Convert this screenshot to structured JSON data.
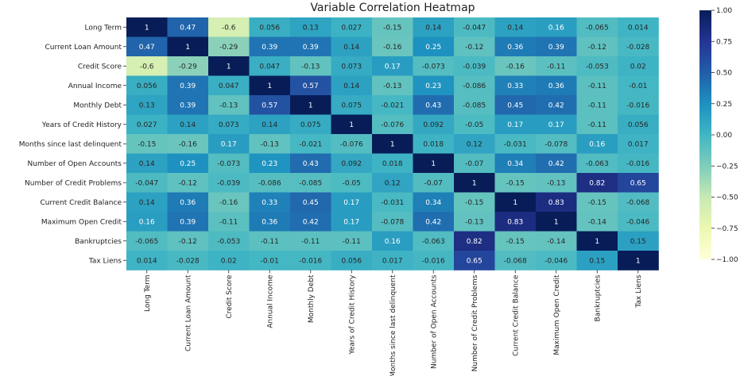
{
  "chart_data": {
    "type": "heatmap",
    "title": "Variable Correlation Heatmap",
    "colormap": "YlGnBu",
    "vmin": -1.0,
    "vmax": 1.0,
    "colorbar_ticks": [
      1.0,
      0.75,
      0.5,
      0.25,
      0.0,
      -0.25,
      -0.5,
      -0.75,
      -1.0
    ],
    "colorbar_tick_labels": [
      "1.00",
      "0.75",
      "0.50",
      "0.25",
      "0.00",
      "−0.25",
      "−0.50",
      "−0.75",
      "−1.00"
    ],
    "rows": [
      "Long Term",
      "Current Loan Amount",
      "Credit Score",
      "Annual Income",
      "Monthly Debt",
      "Years of Credit History",
      "Months since last delinquent",
      "Number of Open Accounts",
      "Number of Credit Problems",
      "Current Credit Balance",
      "Maximum Open Credit",
      "Bankruptcies",
      "Tax Liens"
    ],
    "columns": [
      "Long Term",
      "Current Loan Amount",
      "Credit Score",
      "Annual Income",
      "Monthly Debt",
      "Years of Credit History",
      "Months since last delinquent",
      "Number of Open Accounts",
      "Number of Credit Problems",
      "Current Credit Balance",
      "Maximum Open Credit",
      "Bankruptcies",
      "Tax Liens"
    ],
    "values": [
      [
        1,
        0.47,
        -0.6,
        0.056,
        0.13,
        0.027,
        -0.15,
        0.14,
        -0.047,
        0.14,
        0.16,
        -0.065,
        0.014
      ],
      [
        0.47,
        1,
        -0.29,
        0.39,
        0.39,
        0.14,
        -0.16,
        0.25,
        -0.12,
        0.36,
        0.39,
        -0.12,
        -0.028
      ],
      [
        -0.6,
        -0.29,
        1,
        0.047,
        -0.13,
        0.073,
        0.17,
        -0.073,
        -0.039,
        -0.16,
        -0.11,
        -0.053,
        0.02
      ],
      [
        0.056,
        0.39,
        0.047,
        1,
        0.57,
        0.14,
        -0.13,
        0.23,
        -0.086,
        0.33,
        0.36,
        -0.11,
        -0.01
      ],
      [
        0.13,
        0.39,
        -0.13,
        0.57,
        1,
        0.075,
        -0.021,
        0.43,
        -0.085,
        0.45,
        0.42,
        -0.11,
        -0.016
      ],
      [
        0.027,
        0.14,
        0.073,
        0.14,
        0.075,
        1,
        -0.076,
        0.092,
        -0.05,
        0.17,
        0.17,
        -0.11,
        0.056
      ],
      [
        -0.15,
        -0.16,
        0.17,
        -0.13,
        -0.021,
        -0.076,
        1,
        0.018,
        0.12,
        -0.031,
        -0.078,
        0.16,
        0.017
      ],
      [
        0.14,
        0.25,
        -0.073,
        0.23,
        0.43,
        0.092,
        0.018,
        1,
        -0.07,
        0.34,
        0.42,
        -0.063,
        -0.016
      ],
      [
        -0.047,
        -0.12,
        -0.039,
        -0.086,
        -0.085,
        -0.05,
        0.12,
        -0.07,
        1,
        -0.15,
        -0.13,
        0.82,
        0.65
      ],
      [
        0.14,
        0.36,
        -0.16,
        0.33,
        0.45,
        0.17,
        -0.031,
        0.34,
        -0.15,
        1,
        0.83,
        -0.15,
        -0.068
      ],
      [
        0.16,
        0.39,
        -0.11,
        0.36,
        0.42,
        0.17,
        -0.078,
        0.42,
        -0.13,
        0.83,
        1,
        -0.14,
        -0.046
      ],
      [
        -0.065,
        -0.12,
        -0.053,
        -0.11,
        -0.11,
        -0.11,
        0.16,
        -0.063,
        0.82,
        -0.15,
        -0.14,
        1,
        0.15
      ],
      [
        0.014,
        -0.028,
        0.02,
        -0.01,
        -0.016,
        0.056,
        0.017,
        -0.016,
        0.65,
        -0.068,
        -0.046,
        0.15,
        1
      ]
    ],
    "value_labels": [
      [
        "1",
        "0.47",
        "-0.6",
        "0.056",
        "0.13",
        "0.027",
        "-0.15",
        "0.14",
        "-0.047",
        "0.14",
        "0.16",
        "-0.065",
        "0.014"
      ],
      [
        "0.47",
        "1",
        "-0.29",
        "0.39",
        "0.39",
        "0.14",
        "-0.16",
        "0.25",
        "-0.12",
        "0.36",
        "0.39",
        "-0.12",
        "-0.028"
      ],
      [
        "-0.6",
        "-0.29",
        "1",
        "0.047",
        "-0.13",
        "0.073",
        "0.17",
        "-0.073",
        "-0.039",
        "-0.16",
        "-0.11",
        "-0.053",
        "0.02"
      ],
      [
        "0.056",
        "0.39",
        "0.047",
        "1",
        "0.57",
        "0.14",
        "-0.13",
        "0.23",
        "-0.086",
        "0.33",
        "0.36",
        "-0.11",
        "-0.01"
      ],
      [
        "0.13",
        "0.39",
        "-0.13",
        "0.57",
        "1",
        "0.075",
        "-0.021",
        "0.43",
        "-0.085",
        "0.45",
        "0.42",
        "-0.11",
        "-0.016"
      ],
      [
        "0.027",
        "0.14",
        "0.073",
        "0.14",
        "0.075",
        "1",
        "-0.076",
        "0.092",
        "-0.05",
        "0.17",
        "0.17",
        "-0.11",
        "0.056"
      ],
      [
        "-0.15",
        "-0.16",
        "0.17",
        "-0.13",
        "-0.021",
        "-0.076",
        "1",
        "0.018",
        "0.12",
        "-0.031",
        "-0.078",
        "0.16",
        "0.017"
      ],
      [
        "0.14",
        "0.25",
        "-0.073",
        "0.23",
        "0.43",
        "0.092",
        "0.018",
        "1",
        "-0.07",
        "0.34",
        "0.42",
        "-0.063",
        "-0.016"
      ],
      [
        "-0.047",
        "-0.12",
        "-0.039",
        "-0.086",
        "-0.085",
        "-0.05",
        "0.12",
        "-0.07",
        "1",
        "-0.15",
        "-0.13",
        "0.82",
        "0.65"
      ],
      [
        "0.14",
        "0.36",
        "-0.16",
        "0.33",
        "0.45",
        "0.17",
        "-0.031",
        "0.34",
        "-0.15",
        "1",
        "0.83",
        "-0.15",
        "-0.068"
      ],
      [
        "0.16",
        "0.39",
        "-0.11",
        "0.36",
        "0.42",
        "0.17",
        "-0.078",
        "0.42",
        "-0.13",
        "0.83",
        "1",
        "-0.14",
        "-0.046"
      ],
      [
        "-0.065",
        "-0.12",
        "-0.053",
        "-0.11",
        "-0.11",
        "-0.11",
        "0.16",
        "-0.063",
        "0.82",
        "-0.15",
        "-0.14",
        "1",
        "0.15"
      ],
      [
        "0.014",
        "-0.028",
        "0.02",
        "-0.01",
        "-0.016",
        "0.056",
        "0.017",
        "-0.016",
        "0.65",
        "-0.068",
        "-0.046",
        "0.15",
        "1"
      ]
    ],
    "legend": "colorbar-right",
    "grid": false
  }
}
